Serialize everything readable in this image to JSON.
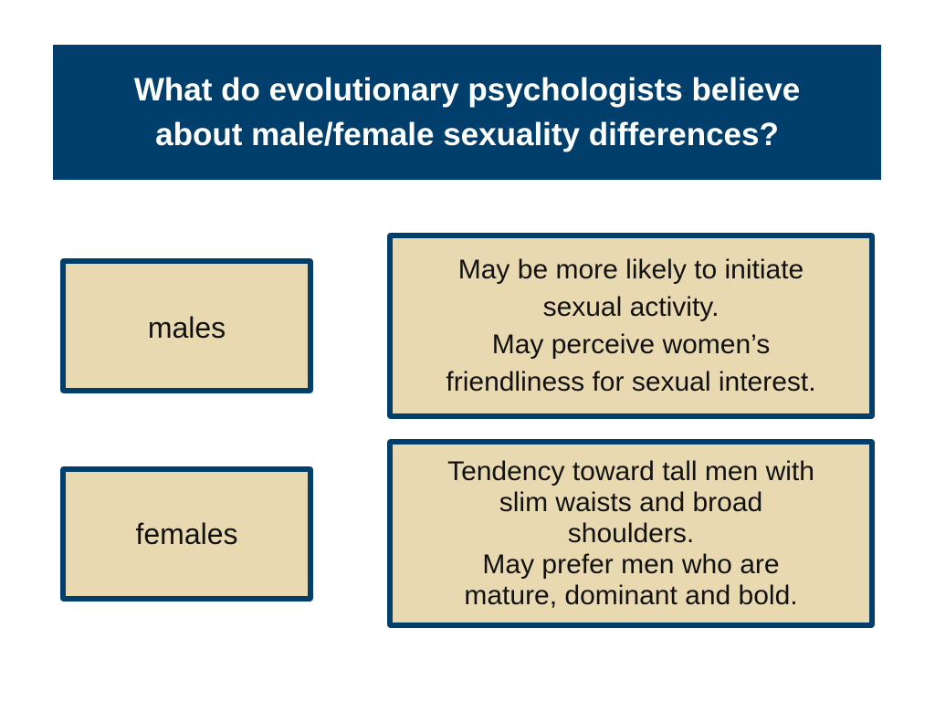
{
  "header": {
    "title_lines": [
      "What do evolutionary psychologists believe",
      "about male/female sexuality differences?"
    ]
  },
  "rows": [
    {
      "label": "males",
      "description_lines": [
        "May be more likely to initiate",
        "sexual activity.",
        "May perceive women’s",
        "friendliness for sexual interest."
      ]
    },
    {
      "label": "females",
      "description_lines": [
        "Tendency toward tall men with",
        "slim waists and broad",
        "shoulders.",
        "May prefer men who are",
        "mature, dominant and bold."
      ]
    }
  ]
}
